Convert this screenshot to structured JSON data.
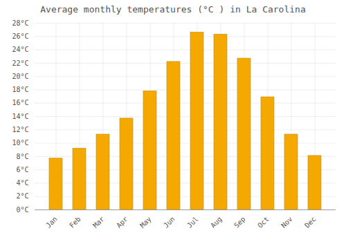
{
  "chart_data": {
    "type": "bar",
    "title": "Average monthly temperatures (°C ) in La Carolina",
    "categories": [
      "Jan",
      "Feb",
      "Mar",
      "Apr",
      "May",
      "Jun",
      "Jul",
      "Aug",
      "Sep",
      "Oct",
      "Nov",
      "Dec"
    ],
    "values": [
      7.7,
      9.2,
      11.3,
      13.7,
      17.8,
      22.2,
      26.6,
      26.3,
      22.7,
      16.9,
      11.3,
      8.1
    ],
    "color": "#F5A800",
    "ylim": [
      0,
      28
    ],
    "yticks": [
      {
        "value": 0,
        "label": "0°C"
      },
      {
        "value": 2,
        "label": "2°C"
      },
      {
        "value": 4,
        "label": "4°C"
      },
      {
        "value": 6,
        "label": "6°C"
      },
      {
        "value": 8,
        "label": "8°C"
      },
      {
        "value": 10,
        "label": "10°C"
      },
      {
        "value": 12,
        "label": "12°C"
      },
      {
        "value": 14,
        "label": "14°C"
      },
      {
        "value": 16,
        "label": "16°C"
      },
      {
        "value": 18,
        "label": "18°C"
      },
      {
        "value": 20,
        "label": "20°C"
      },
      {
        "value": 22,
        "label": "22°C"
      },
      {
        "value": 24,
        "label": "24°C"
      },
      {
        "value": 26,
        "label": "26°C"
      },
      {
        "value": 28,
        "label": "28°C"
      }
    ],
    "grid": true
  }
}
